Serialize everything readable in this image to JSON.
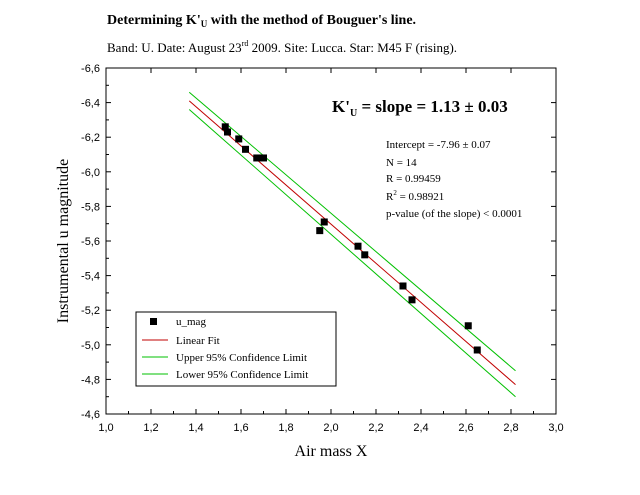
{
  "header": {
    "title_main": "Determining K'",
    "title_sub_u": "U",
    "title_rest": " with the method of Bouguer's line.",
    "subtitle_main": "Band: U. Date: August 23",
    "subtitle_sup": "rd",
    "subtitle_rest": " 2009. Site: Lucca.  Star: M45 F (rising)."
  },
  "annotations": {
    "slope_prefix": "K'",
    "slope_sub": "U",
    "slope_rest": " = slope = 1.13 ± 0.03",
    "intercept": "Intercept = -7.96 ± 0.07",
    "n": "N = 14",
    "r": "R = 0.99459",
    "r2_prefix": "R",
    "r2_sup": "2",
    "r2_rest": " = 0.98921",
    "pvalue": "p-value (of the slope) < 0.0001"
  },
  "legend": {
    "items": [
      {
        "label": "u_mag",
        "kind": "marker"
      },
      {
        "label": "Linear Fit",
        "kind": "fit"
      },
      {
        "label": "Upper 95% Confidence Limit",
        "kind": "ci"
      },
      {
        "label": "Lower 95% Confidence Limit",
        "kind": "ci"
      }
    ]
  },
  "colors": {
    "fit": "#c00000",
    "ci": "#00c000",
    "marker": "#000000",
    "axis": "#000000"
  },
  "chart_data": {
    "type": "scatter",
    "xlabel": "Air mass  X",
    "ylabel": "Instrumental  u  magnitude",
    "xlim": [
      1.0,
      3.0
    ],
    "ylim": [
      -4.6,
      -6.6
    ],
    "y_inverted": true,
    "x_ticks": [
      1.0,
      1.2,
      1.4,
      1.6,
      1.8,
      2.0,
      2.2,
      2.4,
      2.6,
      2.8,
      3.0
    ],
    "x_tick_labels": [
      "1,0",
      "1,2",
      "1,4",
      "1,6",
      "1,8",
      "2,0",
      "2,2",
      "2,4",
      "2,6",
      "2,8",
      "3,0"
    ],
    "y_ticks": [
      -6.6,
      -6.4,
      -6.2,
      -6.0,
      -5.8,
      -5.6,
      -5.4,
      -5.2,
      -5.0,
      -4.8,
      -4.6
    ],
    "y_tick_labels": [
      "-6,6",
      "-6,4",
      "-6,2",
      "-6,0",
      "-5,8",
      "-5,6",
      "-5,4",
      "-5,2",
      "-5,0",
      "-4,8",
      "-4,6"
    ],
    "series": [
      {
        "name": "u_mag",
        "kind": "points",
        "points": [
          [
            1.53,
            -6.26
          ],
          [
            1.54,
            -6.23
          ],
          [
            1.59,
            -6.19
          ],
          [
            1.62,
            -6.13
          ],
          [
            1.67,
            -6.08
          ],
          [
            1.7,
            -6.08
          ],
          [
            1.95,
            -5.66
          ],
          [
            1.97,
            -5.71
          ],
          [
            2.12,
            -5.57
          ],
          [
            2.15,
            -5.52
          ],
          [
            2.32,
            -5.34
          ],
          [
            2.36,
            -5.26
          ],
          [
            2.61,
            -5.11
          ],
          [
            2.65,
            -4.97
          ]
        ]
      },
      {
        "name": "Linear Fit",
        "kind": "line",
        "points": [
          [
            1.37,
            -6.41
          ],
          [
            2.82,
            -4.77
          ]
        ]
      },
      {
        "name": "Upper 95% Confidence Limit",
        "kind": "line",
        "points": [
          [
            1.37,
            -6.46
          ],
          [
            2.82,
            -4.85
          ]
        ]
      },
      {
        "name": "Lower 95% Confidence Limit",
        "kind": "line",
        "points": [
          [
            1.37,
            -6.36
          ],
          [
            2.82,
            -4.7
          ]
        ]
      }
    ]
  }
}
